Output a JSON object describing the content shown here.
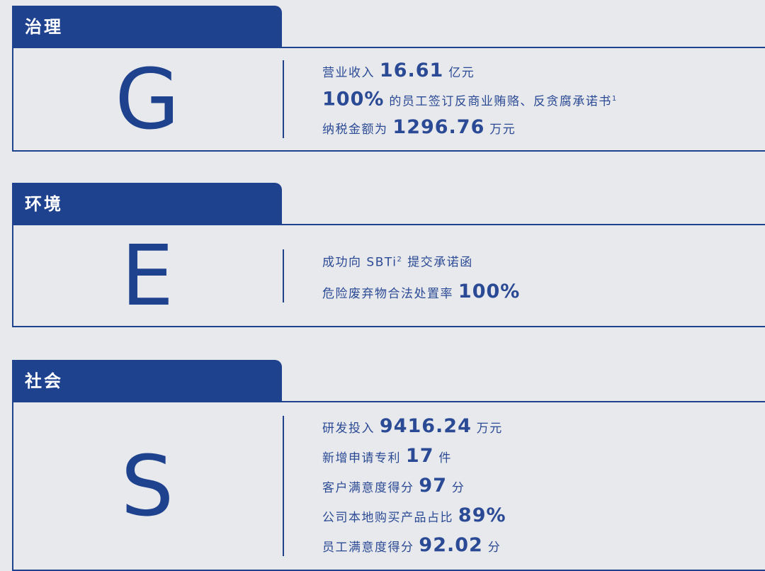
{
  "sections": [
    {
      "tab": "治理",
      "letter": "G",
      "lines": [
        [
          {
            "text": "营业收入 "
          },
          {
            "num": "16.61"
          },
          {
            "text": " 亿元"
          }
        ],
        [
          {
            "num": "100%"
          },
          {
            "text": " 的员工签订反商业贿赂、反贪腐承诺书"
          },
          {
            "sup": "1"
          }
        ],
        [
          {
            "text": "纳税金额为 "
          },
          {
            "num": "1296.76"
          },
          {
            "text": " 万元"
          }
        ]
      ]
    },
    {
      "tab": "环境",
      "letter": "E",
      "lines": [
        [
          {
            "text": "成功向 SBTi"
          },
          {
            "sup": "2"
          },
          {
            "text": " 提交承诺函"
          }
        ],
        [
          {
            "text": "危险废弃物合法处置率 "
          },
          {
            "num": "100%"
          }
        ]
      ]
    },
    {
      "tab": "社会",
      "letter": "S",
      "lines": [
        [
          {
            "text": "研发投入 "
          },
          {
            "num": "9416.24"
          },
          {
            "text": " 万元"
          }
        ],
        [
          {
            "text": "新增申请专利 "
          },
          {
            "num": "17"
          },
          {
            "text": " 件"
          }
        ],
        [
          {
            "text": "客户满意度得分 "
          },
          {
            "num": "97"
          },
          {
            "text": " 分"
          }
        ],
        [
          {
            "text": "公司本地购买产品占比 "
          },
          {
            "num": "89%"
          }
        ],
        [
          {
            "text": "员工满意度得分 "
          },
          {
            "num": "92.02"
          },
          {
            "text": " 分"
          }
        ]
      ]
    }
  ]
}
